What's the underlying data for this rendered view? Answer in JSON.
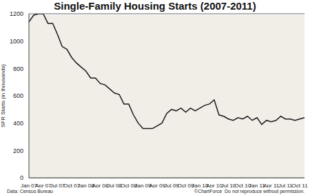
{
  "chart_data": {
    "type": "line",
    "title": "Single-Family Housing Starts (2007-2011)",
    "y_label": "SFR Starts (in thousands)",
    "annotations": [
      "Data: Census Bureau",
      "©ChartForce  Do not reproduce without permission."
    ],
    "categories": [
      "Jan 07",
      null,
      null,
      "Apr 07",
      null,
      null,
      "Jul 07",
      null,
      null,
      "Oct 07",
      null,
      null,
      "Jan 08",
      null,
      null,
      "Apr 08",
      null,
      null,
      "Jul 08",
      null,
      null,
      "Oct 08",
      null,
      null,
      "Jan 09",
      null,
      null,
      "Apr 09",
      null,
      null,
      "Jul 09",
      null,
      null,
      "Oct 09",
      null,
      null,
      "Jan 10",
      null,
      null,
      "Apr 10",
      null,
      null,
      "Jul 10",
      null,
      null,
      "Oct 10",
      null,
      null,
      "Jan 11",
      null,
      null,
      "Apr 11",
      null,
      null,
      "Jul 11",
      null,
      null,
      "Oct 11",
      null
    ],
    "values": [
      1140,
      1190,
      1200,
      1200,
      1130,
      1130,
      1050,
      960,
      940,
      880,
      840,
      810,
      780,
      730,
      730,
      690,
      680,
      650,
      620,
      610,
      540,
      540,
      460,
      400,
      360,
      360,
      360,
      380,
      400,
      470,
      500,
      490,
      510,
      480,
      510,
      490,
      510,
      530,
      540,
      570,
      460,
      450,
      430,
      420,
      440,
      430,
      450,
      420,
      440,
      390,
      420,
      410,
      420,
      450,
      430,
      430,
      420,
      430,
      440
    ],
    "color": "#1a1a1a",
    "ylim": [
      0,
      1200
    ],
    "yticks": [
      0,
      200,
      400,
      600,
      800,
      1000,
      1200
    ],
    "grid": true
  }
}
